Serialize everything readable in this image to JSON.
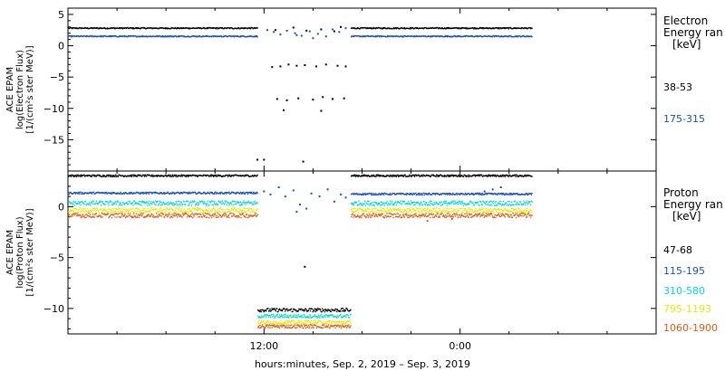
{
  "chart_data": [
    {
      "type": "scatter",
      "panel": "electron",
      "ylabel_lines": [
        "ACE EPAM",
        "log(Electron Flux)",
        "[1/(cm²s ster MeV)]"
      ],
      "yticks": [
        5,
        0,
        -5,
        -10,
        -15
      ],
      "ylim": [
        -20,
        6
      ],
      "legend_title_lines": [
        "Electron",
        "Energy ran",
        "[keV]"
      ],
      "grid": false,
      "series": [
        {
          "name": "38-53",
          "color": "#000000",
          "segments": [
            {
              "x0": 0,
              "x1": 11.6,
              "level": 2.9
            },
            {
              "x0": 17.3,
              "x1": 28.4,
              "level": 2.9
            }
          ],
          "sparse": [
            [
              11.6,
              -18.2
            ],
            [
              12.0,
              -18.2
            ],
            [
              14.4,
              -18.5
            ],
            [
              12.7,
              2.5
            ],
            [
              13.8,
              2.9
            ],
            [
              14.6,
              2.4
            ],
            [
              15.5,
              2.6
            ],
            [
              16.3,
              2.3
            ],
            [
              16.7,
              3.0
            ],
            [
              12.5,
              -3.4
            ],
            [
              13.0,
              -3.3
            ],
            [
              13.5,
              -3.0
            ],
            [
              14.0,
              -3.2
            ],
            [
              14.5,
              -3.1
            ],
            [
              15.2,
              -3.3
            ],
            [
              15.8,
              -3.0
            ],
            [
              16.5,
              -3.2
            ],
            [
              17.0,
              -3.3
            ],
            [
              12.8,
              -8.5
            ],
            [
              13.4,
              -8.7
            ],
            [
              14.1,
              -8.4
            ],
            [
              15.0,
              -8.6
            ],
            [
              15.6,
              -8.2
            ],
            [
              16.2,
              -8.5
            ],
            [
              16.9,
              -8.4
            ],
            [
              13.2,
              -10.3
            ],
            [
              15.5,
              -10.4
            ]
          ]
        },
        {
          "name": "175-315",
          "color": "#1a4fbf",
          "segments": [
            {
              "x0": 0,
              "x1": 11.6,
              "level": 1.6
            },
            {
              "x0": 17.3,
              "x1": 28.4,
              "level": 1.6
            }
          ],
          "sparse": [
            [
              12.2,
              2.5
            ],
            [
              12.6,
              2.2
            ],
            [
              13.0,
              1.8
            ],
            [
              13.4,
              2.4
            ],
            [
              13.9,
              2.0
            ],
            [
              14.3,
              1.6
            ],
            [
              14.8,
              2.3
            ],
            [
              15.3,
              1.9
            ],
            [
              15.8,
              1.5
            ],
            [
              16.2,
              2.6
            ],
            [
              16.6,
              2.2
            ],
            [
              17.0,
              2.8
            ],
            [
              14.0,
              1.7
            ],
            [
              15.0,
              1.2
            ]
          ]
        }
      ]
    },
    {
      "type": "scatter",
      "panel": "proton",
      "ylabel_lines": [
        "ACE EPAM",
        "log(Proton Flux)",
        "[1/(cm²s ster MeV)]"
      ],
      "yticks": [
        0,
        -5,
        -10
      ],
      "ylim": [
        -12.5,
        3.5
      ],
      "legend_title_lines": [
        "Proton",
        "Energy ran",
        "[keV]"
      ],
      "grid": false,
      "series": [
        {
          "name": "47-68",
          "color": "#000000",
          "segments": [
            {
              "x0": 0,
              "x1": 11.6,
              "level": 3.1
            },
            {
              "x0": 17.3,
              "x1": 28.4,
              "level": 3.1
            },
            {
              "x0": 11.6,
              "x1": 17.3,
              "level": -10.1
            }
          ],
          "sparse": [
            [
              14.5,
              -5.9
            ],
            [
              15.2,
              -10.1
            ]
          ]
        },
        {
          "name": "115-195",
          "color": "#1a4fbf",
          "segments": [
            {
              "x0": 0,
              "x1": 11.6,
              "level": 1.4
            },
            {
              "x0": 17.3,
              "x1": 28.4,
              "level": 1.3
            }
          ],
          "sparse": [
            [
              12.0,
              1.5
            ],
            [
              12.4,
              1.2
            ],
            [
              12.9,
              1.9
            ],
            [
              13.3,
              1.0
            ],
            [
              13.8,
              1.6
            ],
            [
              14.2,
              0.2
            ],
            [
              14.6,
              -0.2
            ],
            [
              14.9,
              1.3
            ],
            [
              15.4,
              1.0
            ],
            [
              15.9,
              1.7
            ],
            [
              16.3,
              0.5
            ],
            [
              16.7,
              1.2
            ],
            [
              17.0,
              0.9
            ],
            [
              14.0,
              -0.5
            ],
            [
              26.0,
              1.7
            ],
            [
              26.5,
              1.9
            ],
            [
              25.5,
              1.5
            ]
          ]
        },
        {
          "name": "310-580",
          "color": "#00d8d8",
          "segments": [
            {
              "x0": 0,
              "x1": 11.6,
              "level": 0.4
            },
            {
              "x0": 17.3,
              "x1": 28.4,
              "level": 0.4
            },
            {
              "x0": 11.6,
              "x1": 17.3,
              "level": -10.7
            }
          ],
          "sparse": []
        },
        {
          "name": "795-1193",
          "color": "#e8e800",
          "segments": [
            {
              "x0": 0,
              "x1": 11.6,
              "level": -0.3
            },
            {
              "x0": 17.3,
              "x1": 28.4,
              "level": -0.3
            },
            {
              "x0": 11.6,
              "x1": 17.3,
              "level": -11.3
            }
          ],
          "sparse": []
        },
        {
          "name": "1060-1900",
          "color": "#e05a10",
          "segments": [
            {
              "x0": 0,
              "x1": 11.6,
              "level": -0.8
            },
            {
              "x0": 17.3,
              "x1": 28.4,
              "level": -0.8
            },
            {
              "x0": 11.6,
              "x1": 17.3,
              "level": -11.7
            }
          ],
          "sparse": [
            [
              22.0,
              -1.4
            ],
            [
              23.5,
              -1.2
            ]
          ]
        }
      ]
    }
  ],
  "x_axis": {
    "range_hours": [
      0,
      36
    ],
    "tick_labels": [
      {
        "hour": 12,
        "label": "12:00"
      },
      {
        "hour": 24,
        "label": "0:00"
      }
    ],
    "title": "hours:minutes, Sep.  2, 2019 – Sep.  3, 2019"
  }
}
